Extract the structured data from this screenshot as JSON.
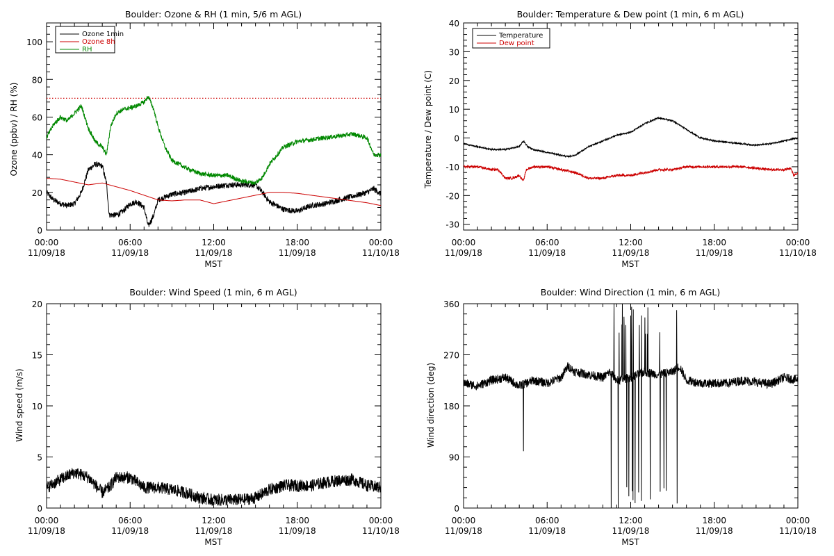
{
  "chart_data": [
    {
      "type": "line",
      "id": "ozone_rh",
      "title": "Boulder: Ozone & RH (1 min, 5/6 m AGL)",
      "xlabel": "MST",
      "ylabel": "Ozone (ppbv) / RH (%)",
      "xlim_hours": [
        0,
        24
      ],
      "ylim": [
        0,
        110
      ],
      "yticks": [
        0,
        20,
        40,
        60,
        80,
        100
      ],
      "xtick_hours": [
        0,
        6,
        12,
        18,
        24
      ],
      "xtick_labels": [
        [
          "00:00",
          "11/09/18"
        ],
        [
          "06:00",
          "11/09/18"
        ],
        [
          "12:00",
          "11/09/18"
        ],
        [
          "18:00",
          "11/09/18"
        ],
        [
          "00:00",
          "11/10/18"
        ]
      ],
      "legend": {
        "position": "top-left",
        "entries": [
          {
            "name": "Ozone 1min",
            "color": "#000000"
          },
          {
            "name": "Ozone 8h",
            "color": "#cc0000"
          },
          {
            "name": "RH",
            "color": "#008800"
          }
        ]
      },
      "reference_line": {
        "y": 70,
        "color": "#cc0000",
        "style": "dotted"
      },
      "series": [
        {
          "name": "Ozone 1min",
          "color": "#000000",
          "noise": 1.5,
          "x": [
            0,
            0.5,
            1,
            1.5,
            2,
            2.5,
            3,
            3.5,
            4,
            4.3,
            4.5,
            5,
            5.5,
            6,
            6.5,
            7,
            7.3,
            7.7,
            8,
            9,
            10,
            11,
            12,
            13,
            14,
            15,
            15.5,
            16,
            17,
            18,
            19,
            20,
            21,
            22,
            23,
            23.5,
            24
          ],
          "y": [
            20,
            16,
            14,
            13,
            14,
            20,
            32,
            35,
            34,
            25,
            8,
            8,
            10,
            14,
            15,
            12,
            2,
            8,
            16,
            19,
            20,
            22,
            23,
            24,
            24,
            24,
            20,
            15,
            11,
            10,
            13,
            14,
            16,
            18,
            20,
            22,
            19
          ]
        },
        {
          "name": "Ozone 8h",
          "color": "#cc0000",
          "noise": 0,
          "x": [
            0,
            1,
            2,
            3,
            4,
            5,
            6,
            7,
            8,
            9,
            10,
            11,
            12,
            13,
            14,
            15,
            16,
            17,
            18,
            19,
            20,
            21,
            22,
            23,
            24
          ],
          "y": [
            27.5,
            27,
            25.5,
            24,
            25,
            23,
            21,
            18.5,
            16,
            15.5,
            16,
            16,
            14,
            15.5,
            17,
            18.5,
            20,
            20,
            19.5,
            18.5,
            17.5,
            16.5,
            15.5,
            14.5,
            13
          ]
        },
        {
          "name": "RH",
          "color": "#008800",
          "noise": 1.2,
          "x": [
            0,
            0.5,
            1,
            1.5,
            2,
            2.5,
            3,
            3.5,
            4,
            4.3,
            4.6,
            5,
            5.5,
            6,
            6.5,
            7,
            7.3,
            7.7,
            8,
            8.5,
            9,
            10,
            11,
            12,
            13,
            14,
            15,
            15.5,
            16,
            17,
            18,
            19,
            20,
            21,
            22,
            23,
            23.5,
            24
          ],
          "y": [
            49,
            56,
            60,
            58,
            62,
            66,
            54,
            47,
            44,
            40,
            55,
            62,
            64,
            65,
            66,
            68,
            71,
            64,
            55,
            44,
            37,
            33,
            30,
            29,
            29,
            26,
            25,
            28,
            35,
            44,
            47,
            48,
            49,
            50,
            51,
            49,
            40,
            40
          ]
        }
      ]
    },
    {
      "type": "line",
      "id": "temp_dew",
      "title": "Boulder: Temperature & Dew point (1 min, 6 m AGL)",
      "xlabel": "MST",
      "ylabel": "Temperature / Dew point (C)",
      "xlim_hours": [
        0,
        24
      ],
      "ylim": [
        -32,
        40
      ],
      "yticks": [
        -30,
        -20,
        -10,
        0,
        10,
        20,
        30,
        40
      ],
      "xtick_hours": [
        0,
        6,
        12,
        18,
        24
      ],
      "xtick_labels": [
        [
          "00:00",
          "11/09/18"
        ],
        [
          "06:00",
          "11/09/18"
        ],
        [
          "12:00",
          "11/09/18"
        ],
        [
          "18:00",
          "11/09/18"
        ],
        [
          "00:00",
          "11/10/18"
        ]
      ],
      "legend": {
        "position": "top-left",
        "entries": [
          {
            "name": "Temperature",
            "color": "#000000"
          },
          {
            "name": "Dew point",
            "color": "#cc0000"
          }
        ]
      },
      "series": [
        {
          "name": "Temperature",
          "color": "#000000",
          "noise": 0.25,
          "x": [
            0,
            1,
            2,
            3,
            4,
            4.3,
            4.6,
            5,
            6,
            7,
            7.5,
            8,
            9,
            10,
            11,
            12,
            13,
            14,
            15,
            16,
            17,
            18,
            19,
            20,
            21,
            22,
            23,
            24
          ],
          "y": [
            -2,
            -3,
            -4,
            -4,
            -3,
            -1,
            -3,
            -4,
            -5,
            -6,
            -6.5,
            -6,
            -3,
            -1,
            1,
            2,
            5,
            7,
            6,
            3,
            0,
            -1,
            -1.5,
            -2,
            -2.5,
            -2,
            -1,
            0
          ]
        },
        {
          "name": "Dew point",
          "color": "#cc0000",
          "noise": 0.4,
          "x": [
            0,
            1,
            2,
            2.5,
            3,
            3.5,
            4,
            4.3,
            4.5,
            5,
            6,
            7,
            8,
            9,
            10,
            11,
            12,
            13,
            14,
            15,
            16,
            17,
            18,
            19,
            20,
            21,
            22,
            23,
            23.5,
            23.7,
            24
          ],
          "y": [
            -10,
            -10,
            -11,
            -11,
            -14,
            -14,
            -13,
            -15,
            -11,
            -10,
            -10,
            -11,
            -12,
            -14,
            -14,
            -13,
            -13,
            -12,
            -11,
            -11,
            -10,
            -10,
            -10,
            -10,
            -10,
            -10.5,
            -11,
            -11,
            -10.5,
            -13,
            -12
          ]
        }
      ]
    },
    {
      "type": "line",
      "id": "wind_speed",
      "title": "Boulder: Wind Speed (1 min, 6 m AGL)",
      "xlabel": "MST",
      "ylabel": "Wind speed (m/s)",
      "xlim_hours": [
        0,
        24
      ],
      "ylim": [
        0,
        20
      ],
      "yticks": [
        0,
        5,
        10,
        15,
        20
      ],
      "xtick_hours": [
        0,
        6,
        12,
        18,
        24
      ],
      "xtick_labels": [
        [
          "00:00",
          "11/09/18"
        ],
        [
          "06:00",
          "11/09/18"
        ],
        [
          "12:00",
          "11/09/18"
        ],
        [
          "18:00",
          "11/09/18"
        ],
        [
          "00:00",
          "11/10/18"
        ]
      ],
      "series": [
        {
          "name": "",
          "color": "#000000",
          "noise": 0.6,
          "x": [
            0,
            1,
            2,
            3,
            4,
            4.5,
            5,
            6,
            7,
            8,
            9,
            10,
            11,
            12,
            13,
            14,
            15,
            16,
            17,
            18,
            19,
            20,
            21,
            22,
            23,
            24
          ],
          "y": [
            2,
            2.8,
            3.5,
            3,
            1.5,
            2,
            3,
            3,
            2,
            2,
            1.8,
            1.5,
            1,
            0.8,
            0.8,
            0.8,
            1,
            1.8,
            2.2,
            2.2,
            2.2,
            2.5,
            2.7,
            2.8,
            2.2,
            2
          ]
        }
      ]
    },
    {
      "type": "line",
      "id": "wind_dir",
      "title": "Boulder: Wind Direction (1 min, 6 m AGL)",
      "xlabel": "MST",
      "ylabel": "Wind direction (deg)",
      "xlim_hours": [
        0,
        24
      ],
      "ylim": [
        0,
        360
      ],
      "yticks": [
        0,
        90,
        180,
        270,
        360
      ],
      "xtick_hours": [
        0,
        6,
        12,
        18,
        24
      ],
      "xtick_labels": [
        [
          "00:00",
          "11/09/18"
        ],
        [
          "06:00",
          "11/09/18"
        ],
        [
          "12:00",
          "11/09/18"
        ],
        [
          "18:00",
          "11/09/18"
        ],
        [
          "00:00",
          "11/10/18"
        ]
      ],
      "series": [
        {
          "name": "",
          "color": "#000000",
          "noise": 8,
          "x": [
            0,
            1,
            2,
            3,
            4,
            5,
            6,
            7,
            7.5,
            8,
            9,
            10,
            10.5,
            11,
            12,
            13,
            14,
            15,
            15.5,
            16,
            17,
            18,
            19,
            20,
            21,
            22,
            23,
            24
          ],
          "y": [
            220,
            215,
            225,
            230,
            215,
            225,
            220,
            230,
            250,
            240,
            235,
            230,
            240,
            225,
            230,
            240,
            235,
            240,
            250,
            225,
            220,
            220,
            220,
            225,
            222,
            218,
            230,
            225
          ],
          "spikes": [
            [
              4.3,
              100
            ],
            [
              10.6,
              0
            ],
            [
              10.8,
              360
            ],
            [
              11.1,
              0
            ],
            [
              11.4,
              360
            ]
          ],
          "chaos_range": [
            11.0,
            15.9
          ]
        }
      ]
    }
  ]
}
